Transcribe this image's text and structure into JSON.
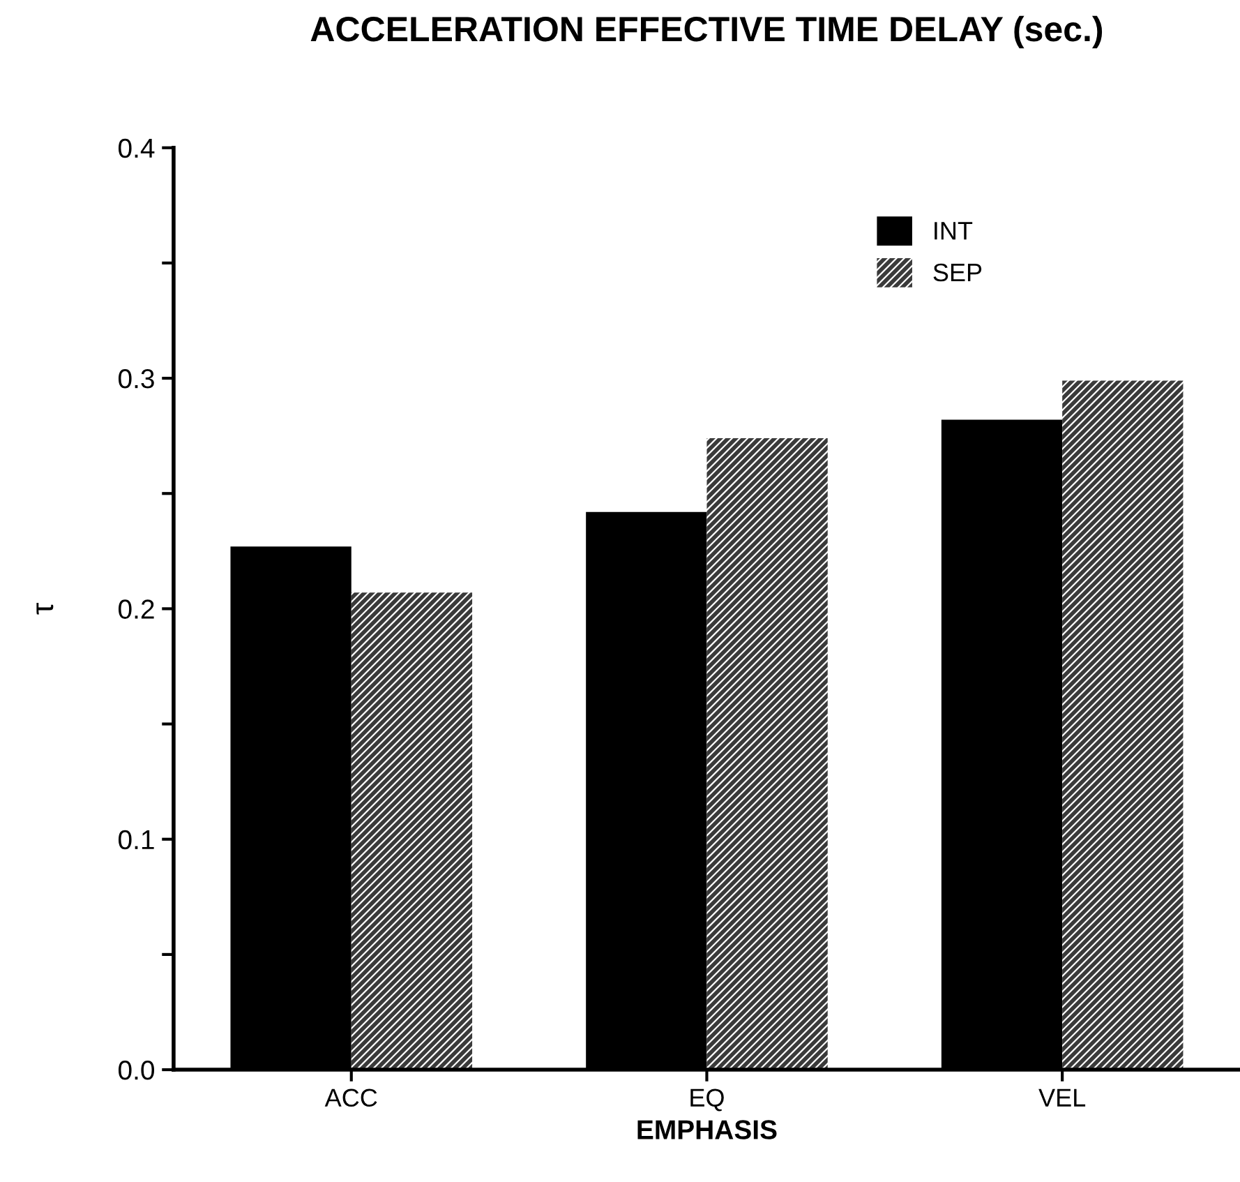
{
  "chart_data": {
    "type": "bar",
    "title": "ACCELERATION EFFECTIVE TIME DELAY (sec.)",
    "xlabel": "EMPHASIS",
    "ylabel": "τ",
    "categories": [
      "ACC",
      "EQ",
      "VEL"
    ],
    "series": [
      {
        "name": "INT",
        "color": "#000000",
        "values": [
          0.227,
          0.242,
          0.282
        ]
      },
      {
        "name": "SEP",
        "color": "#3a3a3a",
        "values": [
          0.207,
          0.274,
          0.299
        ]
      }
    ],
    "ylim": [
      0,
      0.4
    ],
    "yticks": [
      {
        "value": 0,
        "label": "0.0"
      },
      {
        "value": 0.05,
        "label": null
      },
      0.1,
      {
        "value": 0.15,
        "label": null
      },
      0.2,
      {
        "value": 0.25,
        "label": null
      },
      0.3,
      {
        "value": 0.35,
        "label": null
      },
      0.4
    ],
    "grid": false,
    "legend": "top right"
  }
}
